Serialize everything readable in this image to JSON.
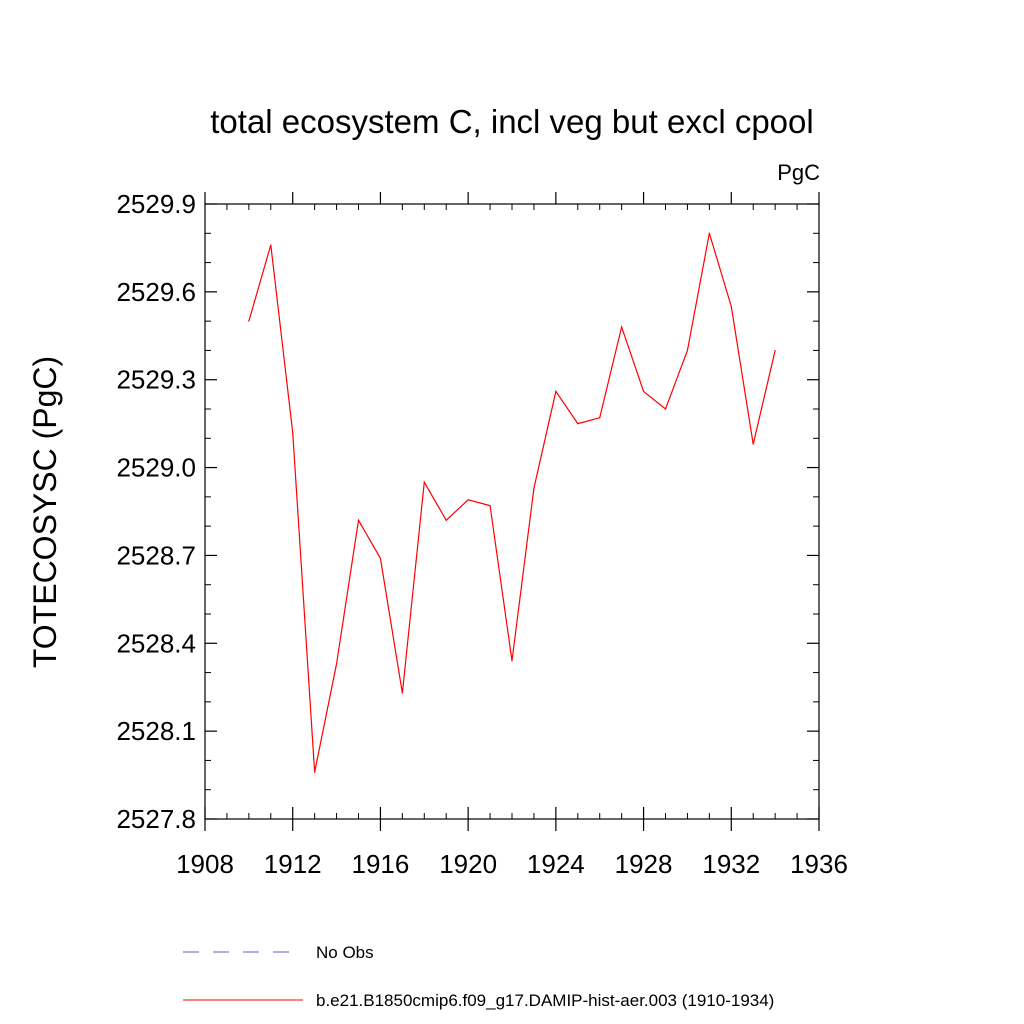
{
  "chart_data": {
    "type": "line",
    "title": "total ecosystem C, incl veg but excl cpool",
    "units_label": "PgC",
    "xlabel": "",
    "ylabel": "TOTECOSYSC  (PgC)",
    "xlim": [
      1908,
      1936
    ],
    "ylim": [
      2527.8,
      2529.9
    ],
    "x_ticks": [
      1908,
      1912,
      1916,
      1920,
      1924,
      1928,
      1932,
      1936
    ],
    "x_tick_labels": [
      "1908",
      "1912",
      "1916",
      "1920",
      "1924",
      "1928",
      "1932",
      "1936"
    ],
    "y_ticks": [
      2527.8,
      2528.1,
      2528.4,
      2528.7,
      2529.0,
      2529.3,
      2529.6,
      2529.9
    ],
    "y_tick_labels": [
      "2527.8",
      "2528.1",
      "2528.4",
      "2528.7",
      "2529.0",
      "2529.3",
      "2529.6",
      "2529.9"
    ],
    "grid": false,
    "legend_position": "bottom",
    "series": [
      {
        "name": "b.e21.B1850cmip6.f09_g17.DAMIP-hist-aer.003 (1910-1934)",
        "color": "#ff0000",
        "style": "solid",
        "x": [
          1910,
          1911,
          1912,
          1913,
          1914,
          1915,
          1916,
          1917,
          1918,
          1919,
          1920,
          1921,
          1922,
          1923,
          1924,
          1925,
          1926,
          1927,
          1928,
          1929,
          1930,
          1931,
          1932,
          1933,
          1934
        ],
        "y": [
          2529.5,
          2529.76,
          2529.12,
          2527.96,
          2528.33,
          2528.82,
          2528.69,
          2528.23,
          2528.95,
          2528.82,
          2528.89,
          2528.87,
          2528.34,
          2528.93,
          2529.26,
          2529.15,
          2529.17,
          2529.48,
          2529.26,
          2529.2,
          2529.4,
          2529.8,
          2529.55,
          2529.08,
          2529.4
        ]
      }
    ],
    "legend": [
      {
        "label": "No Obs",
        "color": "#6a5acd",
        "style": "dashed"
      },
      {
        "label": "b.e21.B1850cmip6.f09_g17.DAMIP-hist-aer.003 (1910-1934)",
        "color": "#ff0000",
        "style": "solid"
      }
    ]
  }
}
